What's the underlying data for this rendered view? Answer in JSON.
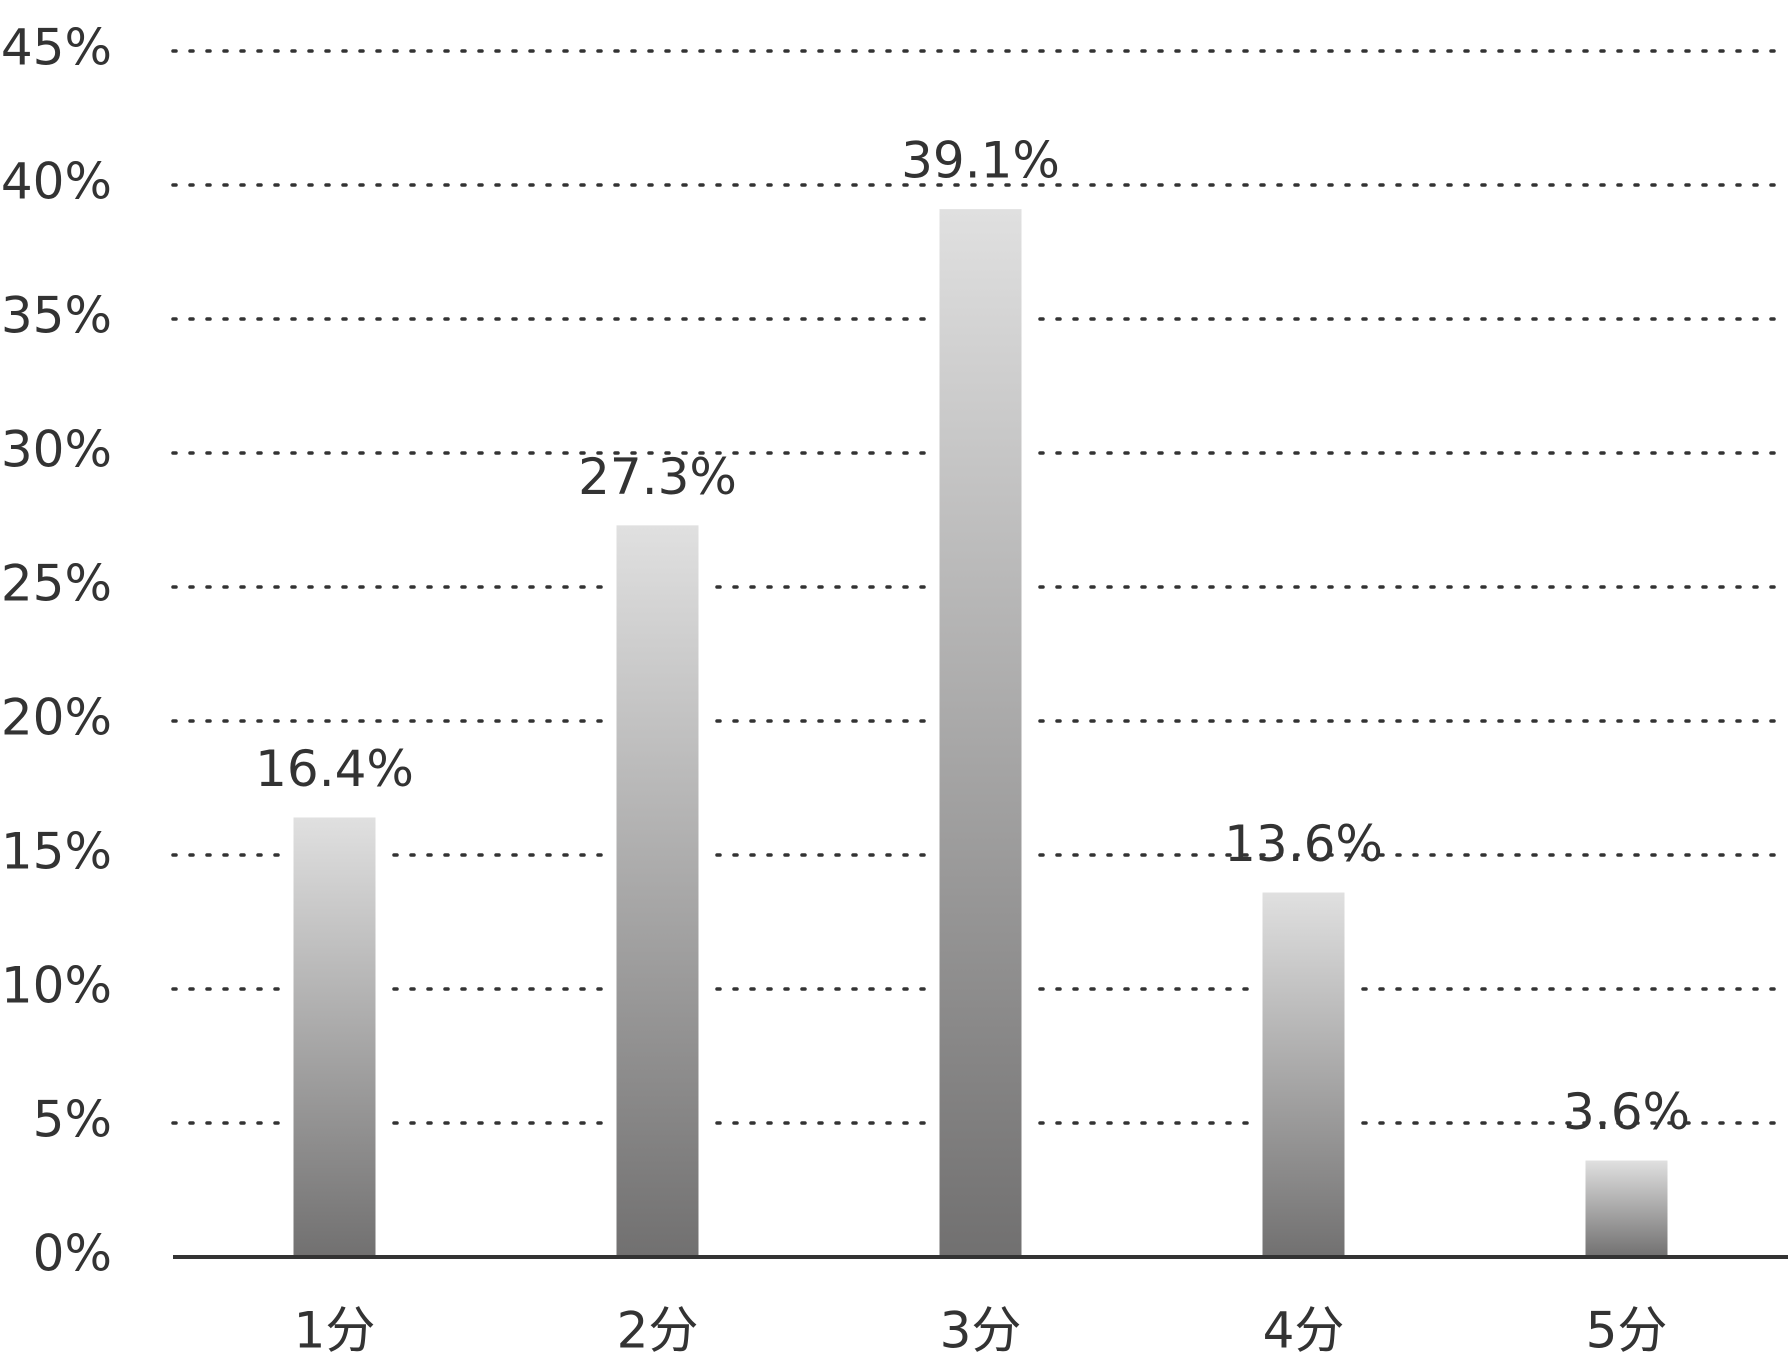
{
  "chart_data": {
    "type": "bar",
    "categories": [
      "1分",
      "2分",
      "3分",
      "4分",
      "5分"
    ],
    "values": [
      16.4,
      27.3,
      39.1,
      13.6,
      3.6
    ],
    "value_labels": [
      "16.4%",
      "27.3%",
      "39.1%",
      "13.6%",
      "3.6%"
    ],
    "gradient": [
      "#e0e0e0",
      "#717070"
    ],
    "ylim": [
      0,
      45
    ],
    "yticks": [
      {
        "value": 0,
        "label": "0%"
      },
      {
        "value": 5,
        "label": "5%"
      },
      {
        "value": 10,
        "label": "10%"
      },
      {
        "value": 15,
        "label": "15%"
      },
      {
        "value": 20,
        "label": "20%"
      },
      {
        "value": 25,
        "label": "25%"
      },
      {
        "value": 30,
        "label": "30%"
      },
      {
        "value": 35,
        "label": "35%"
      },
      {
        "value": 40,
        "label": "40%"
      },
      {
        "value": 45,
        "label": "45%"
      }
    ],
    "grid": true
  }
}
